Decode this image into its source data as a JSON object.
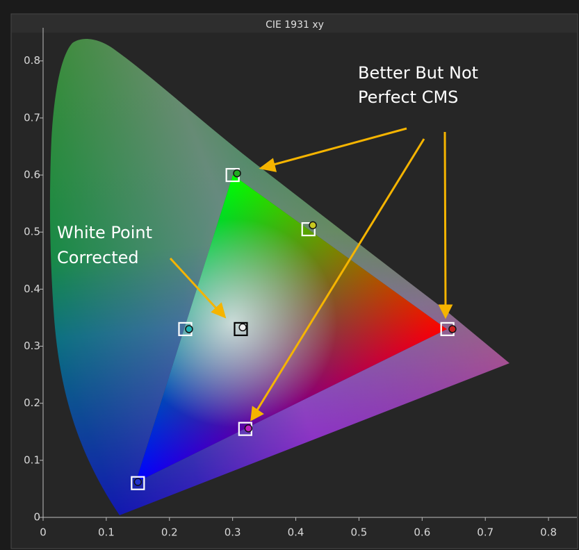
{
  "chart_data": {
    "type": "scatter",
    "title": "CIE 1931 xy",
    "xlim": [
      0,
      0.845
    ],
    "ylim": [
      0,
      0.88
    ],
    "xticks": [
      0,
      0.1,
      0.2,
      0.3,
      0.4,
      0.5,
      0.6,
      0.7,
      0.8
    ],
    "yticks": [
      0,
      0.1,
      0.2,
      0.3,
      0.4,
      0.5,
      0.6,
      0.7,
      0.8
    ],
    "annotations": [
      {
        "lines": [
          "Better But  Not",
          "Perfect CMS"
        ]
      },
      {
        "lines": [
          "White Point",
          "Corrected"
        ]
      }
    ],
    "series": [
      {
        "marker": "square",
        "x": [
          0.64,
          0.3,
          0.15,
          0.225,
          0.32,
          0.42,
          0.313
        ],
        "values": [
          0.33,
          0.6,
          0.06,
          0.33,
          0.155,
          0.505,
          0.33
        ],
        "colors": [
          "#ffffff",
          "#ffffff",
          "#ffffff",
          "#ffffff",
          "#ffffff",
          "#ffffff",
          "#000000"
        ]
      },
      {
        "marker": "circle",
        "x": [
          0.648,
          0.307,
          0.15,
          0.231,
          0.325,
          0.427,
          0.316
        ],
        "values": [
          0.33,
          0.603,
          0.062,
          0.33,
          0.156,
          0.512,
          0.333
        ],
        "colors": [
          "#cc2020",
          "#22aa22",
          "#2233cc",
          "#22b5b5",
          "#c020c0",
          "#c8c820",
          "#eeeeee"
        ]
      }
    ]
  }
}
